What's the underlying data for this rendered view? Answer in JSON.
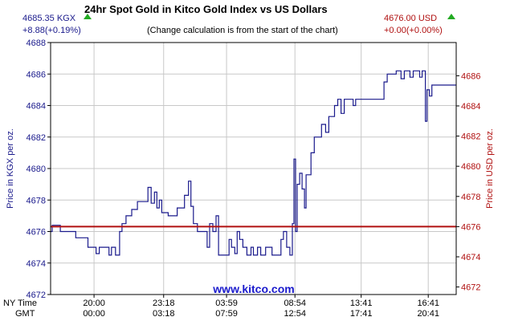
{
  "header": {
    "title": "24hr Spot Gold in Kitco Gold Index vs US Dollars",
    "subtitle": "(Change calculation is from the start of the chart)",
    "left_price": "4685.35 KGX",
    "left_change": "+8.88(+0.19%)",
    "right_price": "4676.00 USD",
    "right_change": "+0.00(+0.00%)"
  },
  "watermark": "www.kitco.com",
  "colors": {
    "kgx": "#1a1a8c",
    "usd": "#b01010",
    "plot_border": "#000000",
    "grid": "#c8c8c8",
    "up_arrow": "#22aa22"
  },
  "chart_data": {
    "type": "line",
    "ylabel_left": "Price in KGX per oz.",
    "ylabel_right": "Price in USD per oz.",
    "ylim_left": [
      4672,
      4688
    ],
    "yticks_left": [
      "4672",
      "4674",
      "4676",
      "4678",
      "4680",
      "4682",
      "4684",
      "4686",
      "4688"
    ],
    "ylim_right": [
      4671.5,
      4688.2
    ],
    "yticks_right": [
      "4672",
      "4674",
      "4676",
      "4678",
      "4680",
      "4682",
      "4684",
      "4686"
    ],
    "grid": true,
    "x_row_labels": [
      "NY Time",
      "GMT"
    ],
    "x_ticks": [
      {
        "pos": 0.1071,
        "ny": "20:00",
        "gmt": "00:00"
      },
      {
        "pos": 0.2787,
        "ny": "23:18",
        "gmt": "03:18"
      },
      {
        "pos": 0.4338,
        "ny": "03:59",
        "gmt": "07:59"
      },
      {
        "pos": 0.6024,
        "ny": "08:54",
        "gmt": "12:54"
      },
      {
        "pos": 0.7657,
        "ny": "13:41",
        "gmt": "17:41"
      },
      {
        "pos": 0.9311,
        "ny": "16:41",
        "gmt": "20:41"
      }
    ],
    "series": [
      {
        "axis": "left",
        "points": [
          [
            0.0,
            4676.0
          ],
          [
            0.004,
            4676.0
          ],
          [
            0.004,
            4676.4
          ],
          [
            0.024,
            4676.4
          ],
          [
            0.024,
            4676.0
          ],
          [
            0.062,
            4676.0
          ],
          [
            0.062,
            4675.6
          ],
          [
            0.092,
            4675.6
          ],
          [
            0.092,
            4675.0
          ],
          [
            0.112,
            4675.0
          ],
          [
            0.112,
            4674.6
          ],
          [
            0.12,
            4674.6
          ],
          [
            0.12,
            4675.0
          ],
          [
            0.144,
            4675.0
          ],
          [
            0.144,
            4674.5
          ],
          [
            0.15,
            4674.5
          ],
          [
            0.15,
            4675.0
          ],
          [
            0.16,
            4675.0
          ],
          [
            0.16,
            4674.5
          ],
          [
            0.17,
            4674.5
          ],
          [
            0.17,
            4676.0
          ],
          [
            0.176,
            4676.0
          ],
          [
            0.176,
            4676.5
          ],
          [
            0.186,
            4676.5
          ],
          [
            0.186,
            4677.0
          ],
          [
            0.2,
            4677.0
          ],
          [
            0.2,
            4677.4
          ],
          [
            0.214,
            4677.4
          ],
          [
            0.214,
            4677.9
          ],
          [
            0.24,
            4677.9
          ],
          [
            0.24,
            4678.8
          ],
          [
            0.248,
            4678.8
          ],
          [
            0.248,
            4677.8
          ],
          [
            0.256,
            4677.8
          ],
          [
            0.256,
            4678.5
          ],
          [
            0.262,
            4678.5
          ],
          [
            0.262,
            4677.5
          ],
          [
            0.268,
            4677.5
          ],
          [
            0.268,
            4678.0
          ],
          [
            0.274,
            4678.0
          ],
          [
            0.274,
            4677.2
          ],
          [
            0.29,
            4677.2
          ],
          [
            0.29,
            4677.0
          ],
          [
            0.312,
            4677.0
          ],
          [
            0.312,
            4677.5
          ],
          [
            0.33,
            4677.5
          ],
          [
            0.33,
            4678.3
          ],
          [
            0.34,
            4678.3
          ],
          [
            0.34,
            4679.2
          ],
          [
            0.346,
            4679.2
          ],
          [
            0.346,
            4677.6
          ],
          [
            0.352,
            4677.6
          ],
          [
            0.352,
            4676.5
          ],
          [
            0.362,
            4676.5
          ],
          [
            0.362,
            4676.0
          ],
          [
            0.386,
            4676.0
          ],
          [
            0.386,
            4675.0
          ],
          [
            0.392,
            4675.0
          ],
          [
            0.392,
            4676.5
          ],
          [
            0.4,
            4676.5
          ],
          [
            0.4,
            4676.0
          ],
          [
            0.408,
            4676.0
          ],
          [
            0.408,
            4677.0
          ],
          [
            0.414,
            4677.0
          ],
          [
            0.414,
            4674.5
          ],
          [
            0.44,
            4674.5
          ],
          [
            0.44,
            4675.5
          ],
          [
            0.446,
            4675.5
          ],
          [
            0.446,
            4675.0
          ],
          [
            0.454,
            4675.0
          ],
          [
            0.454,
            4674.6
          ],
          [
            0.46,
            4674.6
          ],
          [
            0.46,
            4676.0
          ],
          [
            0.466,
            4676.0
          ],
          [
            0.466,
            4675.5
          ],
          [
            0.474,
            4675.5
          ],
          [
            0.474,
            4675.0
          ],
          [
            0.484,
            4675.0
          ],
          [
            0.484,
            4674.5
          ],
          [
            0.494,
            4674.5
          ],
          [
            0.494,
            4675.0
          ],
          [
            0.5,
            4675.0
          ],
          [
            0.5,
            4674.5
          ],
          [
            0.51,
            4674.5
          ],
          [
            0.51,
            4675.0
          ],
          [
            0.518,
            4675.0
          ],
          [
            0.518,
            4674.5
          ],
          [
            0.53,
            4674.5
          ],
          [
            0.53,
            4675.0
          ],
          [
            0.546,
            4675.0
          ],
          [
            0.546,
            4674.5
          ],
          [
            0.568,
            4674.5
          ],
          [
            0.568,
            4675.5
          ],
          [
            0.574,
            4675.5
          ],
          [
            0.574,
            4676.0
          ],
          [
            0.582,
            4676.0
          ],
          [
            0.582,
            4675.0
          ],
          [
            0.59,
            4675.0
          ],
          [
            0.59,
            4674.5
          ],
          [
            0.596,
            4674.5
          ],
          [
            0.596,
            4676.5
          ],
          [
            0.6,
            4676.5
          ],
          [
            0.6,
            4680.6
          ],
          [
            0.604,
            4680.6
          ],
          [
            0.604,
            4676.0
          ],
          [
            0.608,
            4676.0
          ],
          [
            0.608,
            4679.0
          ],
          [
            0.614,
            4679.0
          ],
          [
            0.614,
            4679.7
          ],
          [
            0.62,
            4679.7
          ],
          [
            0.62,
            4678.7
          ],
          [
            0.626,
            4678.7
          ],
          [
            0.626,
            4677.5
          ],
          [
            0.63,
            4677.5
          ],
          [
            0.63,
            4679.6
          ],
          [
            0.642,
            4679.6
          ],
          [
            0.642,
            4681.0
          ],
          [
            0.65,
            4681.0
          ],
          [
            0.65,
            4682.0
          ],
          [
            0.668,
            4682.0
          ],
          [
            0.668,
            4682.8
          ],
          [
            0.678,
            4682.8
          ],
          [
            0.678,
            4682.3
          ],
          [
            0.686,
            4682.3
          ],
          [
            0.686,
            4683.3
          ],
          [
            0.7,
            4683.3
          ],
          [
            0.7,
            4684.0
          ],
          [
            0.708,
            4684.0
          ],
          [
            0.708,
            4684.4
          ],
          [
            0.716,
            4684.4
          ],
          [
            0.716,
            4683.5
          ],
          [
            0.724,
            4683.5
          ],
          [
            0.724,
            4684.4
          ],
          [
            0.746,
            4684.4
          ],
          [
            0.746,
            4684.0
          ],
          [
            0.752,
            4684.0
          ],
          [
            0.752,
            4684.4
          ],
          [
            0.822,
            4684.4
          ],
          [
            0.822,
            4685.5
          ],
          [
            0.83,
            4685.5
          ],
          [
            0.83,
            4686.0
          ],
          [
            0.852,
            4686.0
          ],
          [
            0.852,
            4686.2
          ],
          [
            0.864,
            4686.2
          ],
          [
            0.864,
            4685.7
          ],
          [
            0.872,
            4685.7
          ],
          [
            0.872,
            4686.2
          ],
          [
            0.886,
            4686.2
          ],
          [
            0.886,
            4685.8
          ],
          [
            0.894,
            4685.8
          ],
          [
            0.894,
            4686.2
          ],
          [
            0.91,
            4686.2
          ],
          [
            0.91,
            4685.8
          ],
          [
            0.916,
            4685.8
          ],
          [
            0.916,
            4686.2
          ],
          [
            0.924,
            4686.2
          ],
          [
            0.924,
            4683.0
          ],
          [
            0.928,
            4683.0
          ],
          [
            0.928,
            4685.0
          ],
          [
            0.934,
            4685.0
          ],
          [
            0.934,
            4684.6
          ],
          [
            0.94,
            4684.6
          ],
          [
            0.94,
            4685.3
          ],
          [
            1.0,
            4685.3
          ]
        ]
      },
      {
        "axis": "right",
        "points": [
          [
            0.0,
            4676.0
          ],
          [
            1.0,
            4676.0
          ]
        ]
      }
    ]
  }
}
